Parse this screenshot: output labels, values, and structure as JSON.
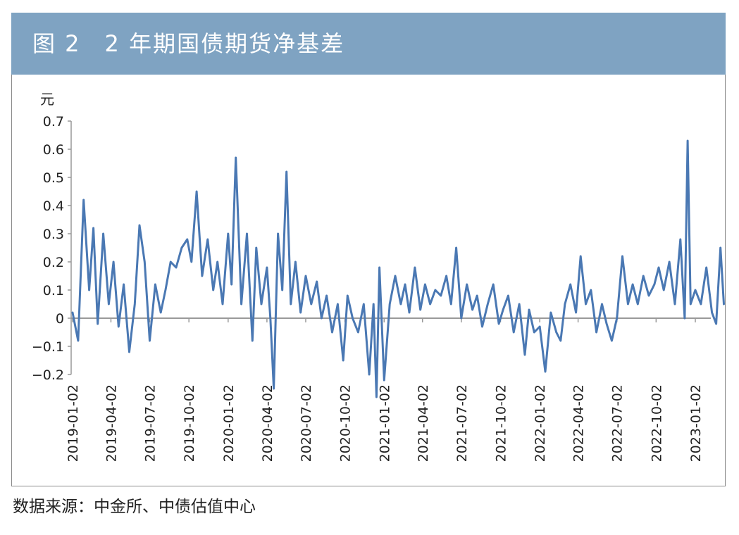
{
  "header": {
    "title": "图 2　2 年期国债期货净基差"
  },
  "footer": {
    "source": "数据来源：中金所、中债估值中心"
  },
  "colors": {
    "title_band": "#7fa3c2",
    "series": "#4a78b3",
    "axis": "#999999"
  },
  "chart_data": {
    "type": "line",
    "title": "2 年期国债期货净基差",
    "ylabel": "元",
    "xlabel": "",
    "ylim": [
      -0.2,
      0.7
    ],
    "yticks": [
      -0.2,
      -0.1,
      0,
      0.1,
      0.2,
      0.3,
      0.4,
      0.5,
      0.6,
      0.7
    ],
    "ytick_labels": [
      "−0.2",
      "−0.1",
      "0",
      "0.1",
      "0.2",
      "0.3",
      "0.4",
      "0.5",
      "0.6",
      "0.7"
    ],
    "x_tick_labels": [
      "2019-01-02",
      "2019-04-02",
      "2019-07-02",
      "2019-10-02",
      "2020-01-02",
      "2020-04-02",
      "2020-07-02",
      "2020-10-02",
      "2021-01-02",
      "2021-04-02",
      "2021-07-02",
      "2021-10-02",
      "2022-01-02",
      "2022-04-02",
      "2022-07-02",
      "2022-10-02",
      "2023-01-02"
    ],
    "grid": false,
    "series": [
      {
        "name": "2 年期国债期货净基差",
        "x": [
          "2019-01-02",
          "2019-01-15",
          "2019-01-28",
          "2019-02-10",
          "2019-02-20",
          "2019-03-02",
          "2019-03-15",
          "2019-03-28",
          "2019-04-08",
          "2019-04-20",
          "2019-05-02",
          "2019-05-15",
          "2019-05-28",
          "2019-06-08",
          "2019-06-20",
          "2019-07-02",
          "2019-07-15",
          "2019-07-28",
          "2019-08-08",
          "2019-08-20",
          "2019-09-02",
          "2019-09-15",
          "2019-09-28",
          "2019-10-08",
          "2019-10-20",
          "2019-11-02",
          "2019-11-15",
          "2019-11-28",
          "2019-12-08",
          "2019-12-20",
          "2020-01-02",
          "2020-01-10",
          "2020-01-20",
          "2020-02-02",
          "2020-02-15",
          "2020-02-28",
          "2020-03-08",
          "2020-03-20",
          "2020-04-02",
          "2020-04-10",
          "2020-04-18",
          "2020-04-28",
          "2020-05-08",
          "2020-05-18",
          "2020-05-28",
          "2020-06-08",
          "2020-06-20",
          "2020-07-02",
          "2020-07-15",
          "2020-07-28",
          "2020-08-08",
          "2020-08-20",
          "2020-09-02",
          "2020-09-15",
          "2020-09-28",
          "2020-10-08",
          "2020-10-20",
          "2020-11-02",
          "2020-11-15",
          "2020-11-28",
          "2020-12-08",
          "2020-12-15",
          "2020-12-22",
          "2021-01-02",
          "2021-01-15",
          "2021-01-28",
          "2021-02-10",
          "2021-02-20",
          "2021-03-02",
          "2021-03-15",
          "2021-03-28",
          "2021-04-08",
          "2021-04-20",
          "2021-05-02",
          "2021-05-15",
          "2021-05-28",
          "2021-06-08",
          "2021-06-20",
          "2021-07-02",
          "2021-07-15",
          "2021-07-28",
          "2021-08-08",
          "2021-08-20",
          "2021-09-02",
          "2021-09-15",
          "2021-09-28",
          "2021-10-08",
          "2021-10-20",
          "2021-11-02",
          "2021-11-15",
          "2021-11-28",
          "2021-12-08",
          "2021-12-20",
          "2022-01-02",
          "2022-01-15",
          "2022-01-28",
          "2022-02-10",
          "2022-02-20",
          "2022-03-02",
          "2022-03-15",
          "2022-03-28",
          "2022-04-08",
          "2022-04-20",
          "2022-05-02",
          "2022-05-15",
          "2022-05-28",
          "2022-06-08",
          "2022-06-20",
          "2022-07-02",
          "2022-07-15",
          "2022-07-28",
          "2022-08-08",
          "2022-08-20",
          "2022-09-02",
          "2022-09-15",
          "2022-09-28",
          "2022-10-08",
          "2022-10-20",
          "2022-11-02",
          "2022-11-15",
          "2022-11-28",
          "2022-12-08",
          "2022-12-15",
          "2022-12-22",
          "2023-01-02",
          "2023-01-15",
          "2023-01-28",
          "2023-02-10",
          "2023-02-20",
          "2023-03-02",
          "2023-03-10"
        ],
        "values": [
          0.02,
          -0.08,
          0.42,
          0.1,
          0.32,
          -0.02,
          0.3,
          0.05,
          0.2,
          -0.03,
          0.12,
          -0.12,
          0.05,
          0.33,
          0.2,
          -0.08,
          0.12,
          0.02,
          0.1,
          0.2,
          0.18,
          0.25,
          0.28,
          0.2,
          0.45,
          0.15,
          0.28,
          0.1,
          0.2,
          0.05,
          0.3,
          0.12,
          0.57,
          0.05,
          0.3,
          -0.08,
          0.25,
          0.05,
          0.18,
          0.0,
          -0.25,
          0.3,
          0.1,
          0.52,
          0.05,
          0.2,
          0.02,
          0.15,
          0.05,
          0.13,
          0.0,
          0.08,
          -0.05,
          0.05,
          -0.15,
          0.08,
          0.0,
          -0.05,
          0.05,
          -0.2,
          0.05,
          -0.28,
          0.18,
          -0.22,
          0.05,
          0.15,
          0.05,
          0.12,
          0.02,
          0.18,
          0.03,
          0.12,
          0.05,
          0.1,
          0.08,
          0.15,
          0.05,
          0.25,
          0.0,
          0.12,
          0.03,
          0.08,
          -0.03,
          0.05,
          0.12,
          -0.02,
          0.03,
          0.08,
          -0.05,
          0.05,
          -0.13,
          0.03,
          -0.05,
          -0.03,
          -0.19,
          0.02,
          -0.05,
          -0.08,
          0.05,
          0.12,
          0.02,
          0.22,
          0.05,
          0.1,
          -0.05,
          0.05,
          -0.02,
          -0.08,
          0.0,
          0.22,
          0.05,
          0.12,
          0.05,
          0.15,
          0.08,
          0.12,
          0.18,
          0.1,
          0.2,
          0.05,
          0.28,
          0.0,
          0.63,
          0.05,
          0.1,
          0.05,
          0.18,
          0.02,
          -0.02,
          0.25,
          0.05
        ]
      }
    ]
  }
}
